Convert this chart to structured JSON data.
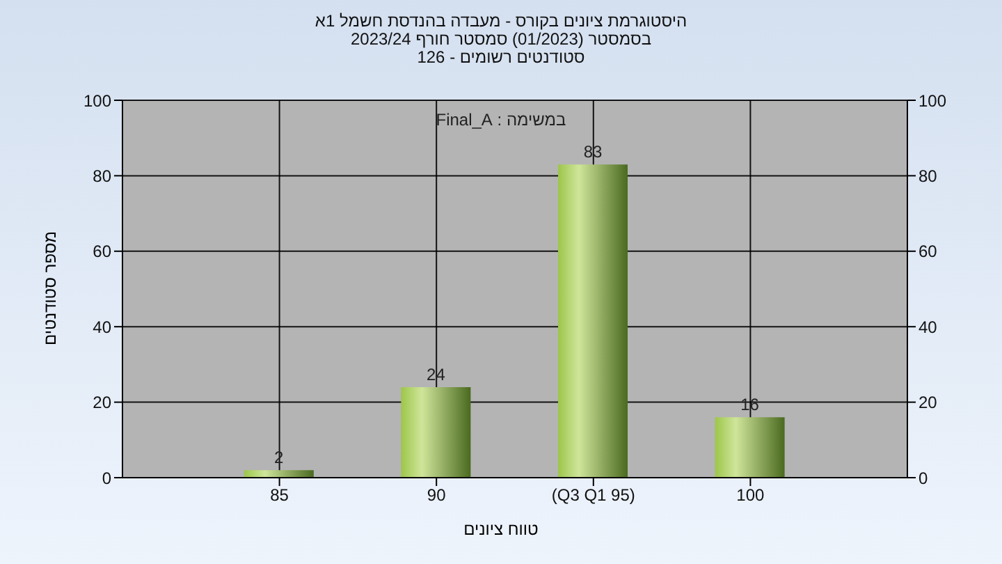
{
  "chart_data": {
    "type": "bar",
    "title": "היסטוגרמת ציונים בקורס - מעבדה בהנדסת חשמל 1א",
    "subtitle": "בסמסטר (01/2023) סמסטר חורף 2023/24\nסטודנטים רשומים - 126",
    "xlabel": "טווח ציונים",
    "ylabel": "מספר סטודנטים",
    "annotations": [
      "במשימה : Final_A"
    ],
    "categories": [
      "85",
      "90",
      "(Q3 Q1 95)",
      "100"
    ],
    "series": [
      {
        "color": "#9cc64a",
        "values": [
          2,
          24,
          83,
          16
        ]
      }
    ],
    "data_labels": true,
    "ylim": [
      0,
      100
    ],
    "yticks": [
      0,
      20,
      40,
      60,
      80,
      100
    ],
    "y2lim": [
      0,
      100
    ],
    "y2ticks": [
      0,
      20,
      40,
      60,
      80,
      100
    ],
    "grid": true
  }
}
